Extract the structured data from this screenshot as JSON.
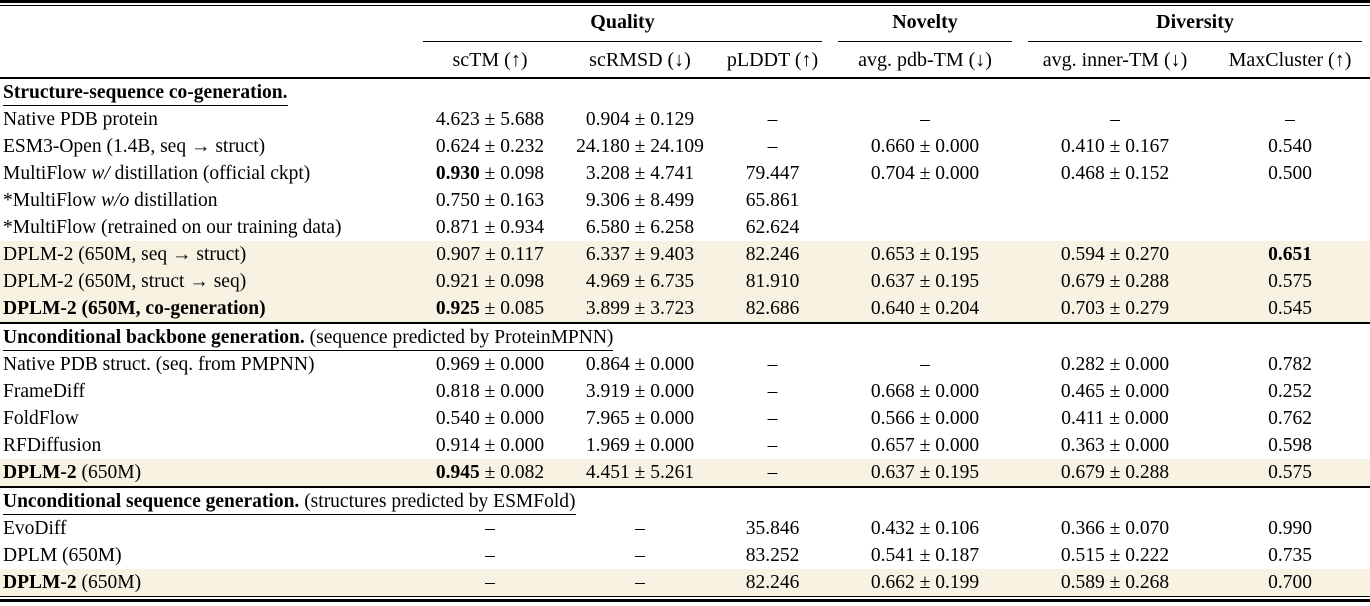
{
  "table": {
    "highlight_color": "#f7f2e1",
    "groups": [
      {
        "label": "Quality"
      },
      {
        "label": "Novelty"
      },
      {
        "label": "Diversity"
      }
    ],
    "columns": [
      "scTM (↑)",
      "scRMSD (↓)",
      "pLDDT (↑)",
      "avg. pdb-TM (↓)",
      "avg. inner-TM (↓)",
      "MaxCluster (↑)"
    ],
    "sections": [
      {
        "title": [
          {
            "t": "Structure-sequence co-generation.",
            "b": true
          }
        ],
        "rows": [
          {
            "label": [
              {
                "t": "Native PDB protein"
              }
            ],
            "highlight": false,
            "cells": [
              {
                "v": "4.623",
                "pm": "5.688"
              },
              {
                "v": "0.904",
                "pm": "0.129"
              },
              {
                "v": "–"
              },
              {
                "v": "–"
              },
              {
                "v": "–"
              },
              {
                "v": "–"
              }
            ]
          },
          {
            "label": [
              {
                "t": "ESM3-Open (1.4B, seq → struct)"
              }
            ],
            "highlight": false,
            "cells": [
              {
                "v": "0.624",
                "pm": "0.232"
              },
              {
                "v": "24.180",
                "pm": "24.109"
              },
              {
                "v": "–"
              },
              {
                "v": "0.660",
                "pm": "0.000"
              },
              {
                "v": "0.410",
                "pm": "0.167"
              },
              {
                "v": "0.540"
              }
            ]
          },
          {
            "label": [
              {
                "t": "MultiFlow "
              },
              {
                "t": "w/",
                "i": true
              },
              {
                "t": " distillation (official ckpt)"
              }
            ],
            "highlight": false,
            "cells": [
              {
                "v": "0.930",
                "pm": "0.098",
                "vb": true
              },
              {
                "v": "3.208",
                "pm": "4.741"
              },
              {
                "v": "79.447"
              },
              {
                "v": "0.704",
                "pm": "0.000"
              },
              {
                "v": "0.468",
                "pm": "0.152"
              },
              {
                "v": "0.500"
              }
            ]
          },
          {
            "label": [
              {
                "t": "*MultiFlow "
              },
              {
                "t": "w/o",
                "i": true
              },
              {
                "t": " distillation"
              }
            ],
            "highlight": false,
            "cells": [
              {
                "v": "0.750",
                "pm": "0.163"
              },
              {
                "v": "9.306",
                "pm": "8.499"
              },
              {
                "v": "65.861"
              },
              {
                "v": ""
              },
              {
                "v": ""
              },
              {
                "v": ""
              }
            ]
          },
          {
            "label": [
              {
                "t": "*MultiFlow (retrained on our training data)"
              }
            ],
            "highlight": false,
            "cells": [
              {
                "v": "0.871",
                "pm": "0.934"
              },
              {
                "v": "6.580",
                "pm": "6.258"
              },
              {
                "v": "62.624"
              },
              {
                "v": ""
              },
              {
                "v": ""
              },
              {
                "v": ""
              }
            ]
          },
          {
            "label": [
              {
                "t": "DPLM-2 (650M, seq → struct)"
              }
            ],
            "highlight": true,
            "cells": [
              {
                "v": "0.907",
                "pm": "0.117"
              },
              {
                "v": "6.337",
                "pm": "9.403"
              },
              {
                "v": "82.246"
              },
              {
                "v": "0.653",
                "pm": "0.195"
              },
              {
                "v": "0.594",
                "pm": "0.270"
              },
              {
                "v": "0.651",
                "vb": true
              }
            ]
          },
          {
            "label": [
              {
                "t": "DPLM-2 (650M, struct → seq)"
              }
            ],
            "highlight": true,
            "cells": [
              {
                "v": "0.921",
                "pm": "0.098"
              },
              {
                "v": "4.969",
                "pm": "6.735"
              },
              {
                "v": "81.910"
              },
              {
                "v": "0.637",
                "pm": "0.195"
              },
              {
                "v": "0.679",
                "pm": "0.288"
              },
              {
                "v": "0.575"
              }
            ]
          },
          {
            "label": [
              {
                "t": "DPLM-2 (650M, co-generation)",
                "b": true
              }
            ],
            "highlight": true,
            "cells": [
              {
                "v": "0.925",
                "pm": "0.085",
                "vb": true
              },
              {
                "v": "3.899",
                "pm": "3.723"
              },
              {
                "v": "82.686"
              },
              {
                "v": "0.640",
                "pm": "0.204"
              },
              {
                "v": "0.703",
                "pm": "0.279"
              },
              {
                "v": "0.545"
              }
            ]
          }
        ]
      },
      {
        "title": [
          {
            "t": "Unconditional backbone generation.",
            "b": true
          },
          {
            "t": " (sequence predicted by ProteinMPNN)"
          }
        ],
        "rows": [
          {
            "label": [
              {
                "t": "Native PDB struct. (seq. from PMPNN)"
              }
            ],
            "highlight": false,
            "cells": [
              {
                "v": "0.969",
                "pm": "0.000"
              },
              {
                "v": "0.864",
                "pm": "0.000"
              },
              {
                "v": "–"
              },
              {
                "v": "–"
              },
              {
                "v": "0.282",
                "pm": "0.000"
              },
              {
                "v": "0.782"
              }
            ]
          },
          {
            "label": [
              {
                "t": "FrameDiff"
              }
            ],
            "highlight": false,
            "cells": [
              {
                "v": "0.818",
                "pm": "0.000"
              },
              {
                "v": "3.919",
                "pm": "0.000"
              },
              {
                "v": "–"
              },
              {
                "v": "0.668",
                "pm": "0.000"
              },
              {
                "v": "0.465",
                "pm": "0.000"
              },
              {
                "v": "0.252"
              }
            ]
          },
          {
            "label": [
              {
                "t": "FoldFlow"
              }
            ],
            "highlight": false,
            "cells": [
              {
                "v": "0.540",
                "pm": "0.000"
              },
              {
                "v": "7.965",
                "pm": "0.000"
              },
              {
                "v": "–"
              },
              {
                "v": "0.566",
                "pm": "0.000"
              },
              {
                "v": "0.411",
                "pm": "0.000"
              },
              {
                "v": "0.762"
              }
            ]
          },
          {
            "label": [
              {
                "t": "RFDiffusion"
              }
            ],
            "highlight": false,
            "cells": [
              {
                "v": "0.914",
                "pm": "0.000"
              },
              {
                "v": "1.969",
                "pm": "0.000"
              },
              {
                "v": "–"
              },
              {
                "v": "0.657",
                "pm": "0.000"
              },
              {
                "v": "0.363",
                "pm": "0.000"
              },
              {
                "v": "0.598"
              }
            ]
          },
          {
            "label": [
              {
                "t": "DPLM-2",
                "b": true
              },
              {
                "t": " (650M)"
              }
            ],
            "highlight": true,
            "cells": [
              {
                "v": "0.945",
                "pm": "0.082",
                "vb": true
              },
              {
                "v": "4.451",
                "pm": "5.261"
              },
              {
                "v": "–"
              },
              {
                "v": "0.637",
                "pm": "0.195"
              },
              {
                "v": "0.679",
                "pm": "0.288"
              },
              {
                "v": "0.575"
              }
            ]
          }
        ]
      },
      {
        "title": [
          {
            "t": "Unconditional sequence generation.",
            "b": true
          },
          {
            "t": " (structures predicted by ESMFold)"
          }
        ],
        "rows": [
          {
            "label": [
              {
                "t": "EvoDiff"
              }
            ],
            "highlight": false,
            "cells": [
              {
                "v": "–"
              },
              {
                "v": "–"
              },
              {
                "v": "35.846"
              },
              {
                "v": "0.432",
                "pm": "0.106"
              },
              {
                "v": "0.366",
                "pm": "0.070"
              },
              {
                "v": "0.990"
              }
            ]
          },
          {
            "label": [
              {
                "t": "DPLM (650M)"
              }
            ],
            "highlight": false,
            "cells": [
              {
                "v": "–"
              },
              {
                "v": "–"
              },
              {
                "v": "83.252"
              },
              {
                "v": "0.541",
                "pm": "0.187"
              },
              {
                "v": "0.515",
                "pm": "0.222"
              },
              {
                "v": "0.735"
              }
            ]
          },
          {
            "label": [
              {
                "t": "DPLM-2",
                "b": true
              },
              {
                "t": " (650M)"
              }
            ],
            "highlight": true,
            "cells": [
              {
                "v": "–"
              },
              {
                "v": "–"
              },
              {
                "v": "82.246"
              },
              {
                "v": "0.662",
                "pm": "0.199"
              },
              {
                "v": "0.589",
                "pm": "0.268"
              },
              {
                "v": "0.700"
              }
            ]
          }
        ]
      }
    ]
  }
}
